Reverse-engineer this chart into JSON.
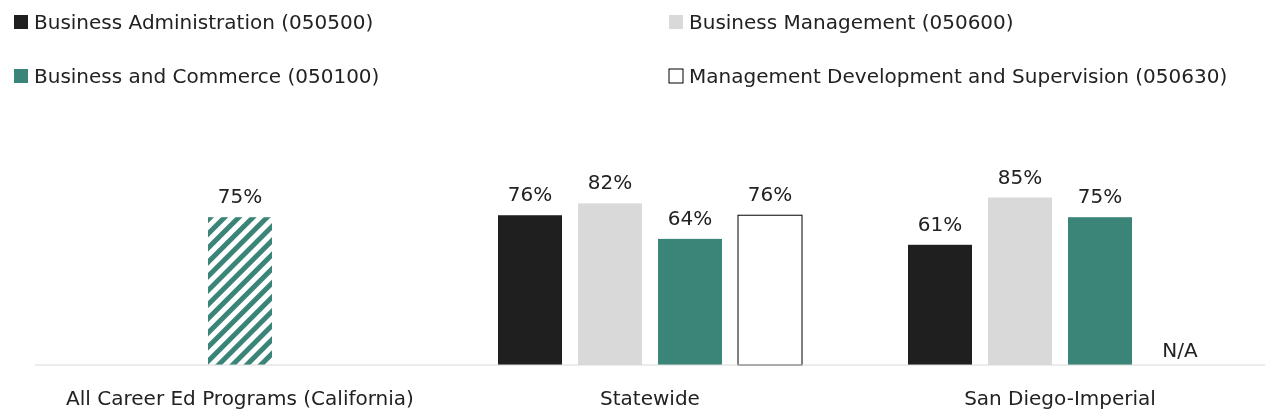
{
  "chart_data": {
    "type": "bar",
    "categories": [
      "All Career Ed Programs (California)",
      "Statewide",
      "San Diego-Imperial"
    ],
    "series": [
      {
        "name": "Business Administration (050500)",
        "color": "#1f1f1f",
        "values": [
          null,
          76,
          61
        ],
        "value_labels": [
          null,
          "76%",
          "61%"
        ]
      },
      {
        "name": "Business Management (050600)",
        "color": "#d9d9d9",
        "values": [
          null,
          82,
          85
        ],
        "value_labels": [
          null,
          "82%",
          "85%"
        ]
      },
      {
        "name": "Business and Commerce (050100)",
        "color": "#3a8478",
        "values": [
          null,
          64,
          75
        ],
        "value_labels": [
          null,
          "64%",
          "75%"
        ]
      },
      {
        "name": "Management Development and Supervision (050630)",
        "color": "#ffffff",
        "values": [
          null,
          76,
          null
        ],
        "value_labels": [
          null,
          "76%",
          "N/A"
        ]
      },
      {
        "color": "#3a8478",
        "values": [
          75,
          null,
          null
        ],
        "value_labels": [
          "75%",
          null,
          null
        ]
      }
    ],
    "tick_labels": "x",
    "legend": "top"
  }
}
